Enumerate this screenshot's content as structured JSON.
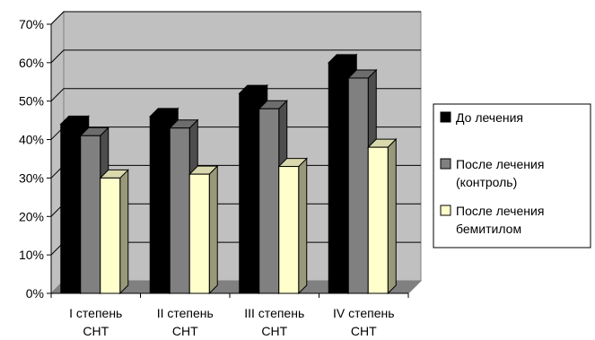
{
  "chart_data": {
    "type": "bar",
    "categories": [
      [
        "I степень",
        "СНТ"
      ],
      [
        "II степень",
        "СНТ"
      ],
      [
        "III степень",
        "СНТ"
      ],
      [
        "IV степень",
        "СНТ"
      ]
    ],
    "series": [
      {
        "name": [
          "До лечения"
        ],
        "values": [
          44,
          46,
          52,
          60
        ],
        "color": "#000000"
      },
      {
        "name": [
          "После лечения",
          "(контроль)"
        ],
        "values": [
          41,
          43,
          48,
          56
        ],
        "color": "#808080"
      },
      {
        "name": [
          "После лечения",
          "бемитилом"
        ],
        "values": [
          30,
          31,
          33,
          38
        ],
        "color": "#ffffcc"
      }
    ],
    "yticks": [
      "0%",
      "10%",
      "20%",
      "30%",
      "40%",
      "50%",
      "60%",
      "70%"
    ],
    "ylim": [
      0,
      70
    ],
    "grid": true,
    "legend": "right",
    "style": "3d-clustered-column",
    "colors": {
      "wall": "#c0c0c0",
      "floor": "#808080"
    }
  }
}
